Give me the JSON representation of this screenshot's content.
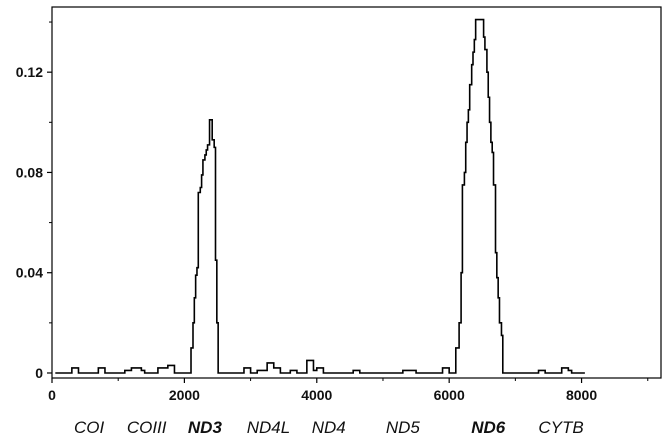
{
  "chart_data": {
    "type": "line",
    "line_style": "step",
    "title": "",
    "xlabel": "",
    "ylabel": "",
    "xlim": [
      0,
      9200
    ],
    "ylim": [
      -0.002,
      0.146
    ],
    "grid": false,
    "legend": "none",
    "line_color": "#000000",
    "x_ticks": [
      {
        "value": 0,
        "label": "0"
      },
      {
        "value": 2000,
        "label": "2000"
      },
      {
        "value": 4000,
        "label": "4000"
      },
      {
        "value": 6000,
        "label": "6000"
      },
      {
        "value": 8000,
        "label": "8000"
      }
    ],
    "x_minor_ticks": [
      1000,
      3000,
      5000,
      7000,
      9000
    ],
    "y_ticks": [
      {
        "value": 0,
        "label": "0"
      },
      {
        "value": 0.04,
        "label": "0.04"
      },
      {
        "value": 0.08,
        "label": "0.08"
      },
      {
        "value": 0.12,
        "label": "0.12"
      }
    ],
    "y_minor_ticks": [
      0.02,
      0.06,
      0.1,
      0.14
    ],
    "gene_labels": [
      {
        "label": "COI",
        "x": 560,
        "emphasis": false
      },
      {
        "label": "COIII",
        "x": 1430,
        "emphasis": false
      },
      {
        "label": "ND3",
        "x": 2310,
        "emphasis": true
      },
      {
        "label": "ND4L",
        "x": 3270,
        "emphasis": false
      },
      {
        "label": "ND4",
        "x": 4180,
        "emphasis": false
      },
      {
        "label": "ND5",
        "x": 5300,
        "emphasis": false
      },
      {
        "label": "ND6",
        "x": 6590,
        "emphasis": true
      },
      {
        "label": "CYTB",
        "x": 7690,
        "emphasis": false
      }
    ],
    "series": [
      {
        "points": [
          [
            50,
            0
          ],
          [
            300,
            0
          ],
          [
            300,
            0.002
          ],
          [
            400,
            0.002
          ],
          [
            400,
            0
          ],
          [
            700,
            0
          ],
          [
            700,
            0.002
          ],
          [
            800,
            0.002
          ],
          [
            800,
            0
          ],
          [
            1100,
            0
          ],
          [
            1100,
            0.001
          ],
          [
            1200,
            0.001
          ],
          [
            1200,
            0.002
          ],
          [
            1350,
            0.002
          ],
          [
            1350,
            0.001
          ],
          [
            1400,
            0.001
          ],
          [
            1400,
            0
          ],
          [
            1600,
            0
          ],
          [
            1600,
            0.002
          ],
          [
            1750,
            0.002
          ],
          [
            1750,
            0.003
          ],
          [
            1850,
            0.003
          ],
          [
            1850,
            0
          ],
          [
            2100,
            0
          ],
          [
            2100,
            0.01
          ],
          [
            2130,
            0.01
          ],
          [
            2130,
            0.02
          ],
          [
            2150,
            0.02
          ],
          [
            2150,
            0.03
          ],
          [
            2170,
            0.03
          ],
          [
            2170,
            0.039
          ],
          [
            2190,
            0.039
          ],
          [
            2190,
            0.042
          ],
          [
            2210,
            0.042
          ],
          [
            2210,
            0.072
          ],
          [
            2240,
            0.072
          ],
          [
            2240,
            0.074
          ],
          [
            2260,
            0.074
          ],
          [
            2260,
            0.079
          ],
          [
            2280,
            0.079
          ],
          [
            2280,
            0.085
          ],
          [
            2310,
            0.085
          ],
          [
            2310,
            0.087
          ],
          [
            2330,
            0.087
          ],
          [
            2330,
            0.089
          ],
          [
            2350,
            0.089
          ],
          [
            2350,
            0.091
          ],
          [
            2380,
            0.091
          ],
          [
            2380,
            0.101
          ],
          [
            2420,
            0.101
          ],
          [
            2420,
            0.093
          ],
          [
            2450,
            0.093
          ],
          [
            2450,
            0.09
          ],
          [
            2470,
            0.09
          ],
          [
            2470,
            0.045
          ],
          [
            2490,
            0.045
          ],
          [
            2490,
            0.02
          ],
          [
            2510,
            0.02
          ],
          [
            2510,
            0
          ],
          [
            2900,
            0
          ],
          [
            2900,
            0.002
          ],
          [
            3000,
            0.002
          ],
          [
            3000,
            0
          ],
          [
            3100,
            0
          ],
          [
            3100,
            0.001
          ],
          [
            3250,
            0.001
          ],
          [
            3250,
            0.004
          ],
          [
            3350,
            0.004
          ],
          [
            3350,
            0.002
          ],
          [
            3450,
            0.002
          ],
          [
            3450,
            0
          ],
          [
            3600,
            0
          ],
          [
            3600,
            0.001
          ],
          [
            3700,
            0.001
          ],
          [
            3700,
            0
          ],
          [
            3850,
            0
          ],
          [
            3850,
            0.005
          ],
          [
            3950,
            0.005
          ],
          [
            3950,
            0.001
          ],
          [
            4000,
            0.001
          ],
          [
            4000,
            0.002
          ],
          [
            4100,
            0.002
          ],
          [
            4100,
            0
          ],
          [
            4550,
            0
          ],
          [
            4550,
            0.001
          ],
          [
            4650,
            0.001
          ],
          [
            4650,
            0
          ],
          [
            5300,
            0
          ],
          [
            5300,
            0.001
          ],
          [
            5500,
            0.001
          ],
          [
            5500,
            0
          ],
          [
            5900,
            0
          ],
          [
            5900,
            0.002
          ],
          [
            6000,
            0.002
          ],
          [
            6000,
            0
          ],
          [
            6100,
            0
          ],
          [
            6100,
            0.01
          ],
          [
            6150,
            0.01
          ],
          [
            6150,
            0.02
          ],
          [
            6180,
            0.02
          ],
          [
            6180,
            0.04
          ],
          [
            6200,
            0.04
          ],
          [
            6200,
            0.075
          ],
          [
            6230,
            0.075
          ],
          [
            6230,
            0.08
          ],
          [
            6250,
            0.08
          ],
          [
            6250,
            0.092
          ],
          [
            6270,
            0.092
          ],
          [
            6270,
            0.1
          ],
          [
            6290,
            0.1
          ],
          [
            6290,
            0.105
          ],
          [
            6310,
            0.105
          ],
          [
            6310,
            0.115
          ],
          [
            6340,
            0.115
          ],
          [
            6340,
            0.123
          ],
          [
            6360,
            0.123
          ],
          [
            6360,
            0.128
          ],
          [
            6380,
            0.128
          ],
          [
            6380,
            0.133
          ],
          [
            6400,
            0.133
          ],
          [
            6400,
            0.141
          ],
          [
            6520,
            0.141
          ],
          [
            6520,
            0.134
          ],
          [
            6540,
            0.134
          ],
          [
            6540,
            0.129
          ],
          [
            6570,
            0.129
          ],
          [
            6570,
            0.12
          ],
          [
            6590,
            0.12
          ],
          [
            6590,
            0.11
          ],
          [
            6610,
            0.11
          ],
          [
            6610,
            0.1
          ],
          [
            6630,
            0.1
          ],
          [
            6630,
            0.092
          ],
          [
            6650,
            0.092
          ],
          [
            6650,
            0.088
          ],
          [
            6670,
            0.088
          ],
          [
            6670,
            0.075
          ],
          [
            6700,
            0.075
          ],
          [
            6700,
            0.048
          ],
          [
            6720,
            0.048
          ],
          [
            6720,
            0.038
          ],
          [
            6740,
            0.038
          ],
          [
            6740,
            0.03
          ],
          [
            6760,
            0.03
          ],
          [
            6760,
            0.02
          ],
          [
            6790,
            0.02
          ],
          [
            6790,
            0.015
          ],
          [
            6810,
            0.015
          ],
          [
            6810,
            0
          ],
          [
            7350,
            0
          ],
          [
            7350,
            0.001
          ],
          [
            7450,
            0.001
          ],
          [
            7450,
            0
          ],
          [
            7700,
            0
          ],
          [
            7700,
            0.002
          ],
          [
            7800,
            0.002
          ],
          [
            7800,
            0.001
          ],
          [
            7850,
            0.001
          ],
          [
            7850,
            0
          ],
          [
            8050,
            0
          ]
        ]
      }
    ]
  }
}
